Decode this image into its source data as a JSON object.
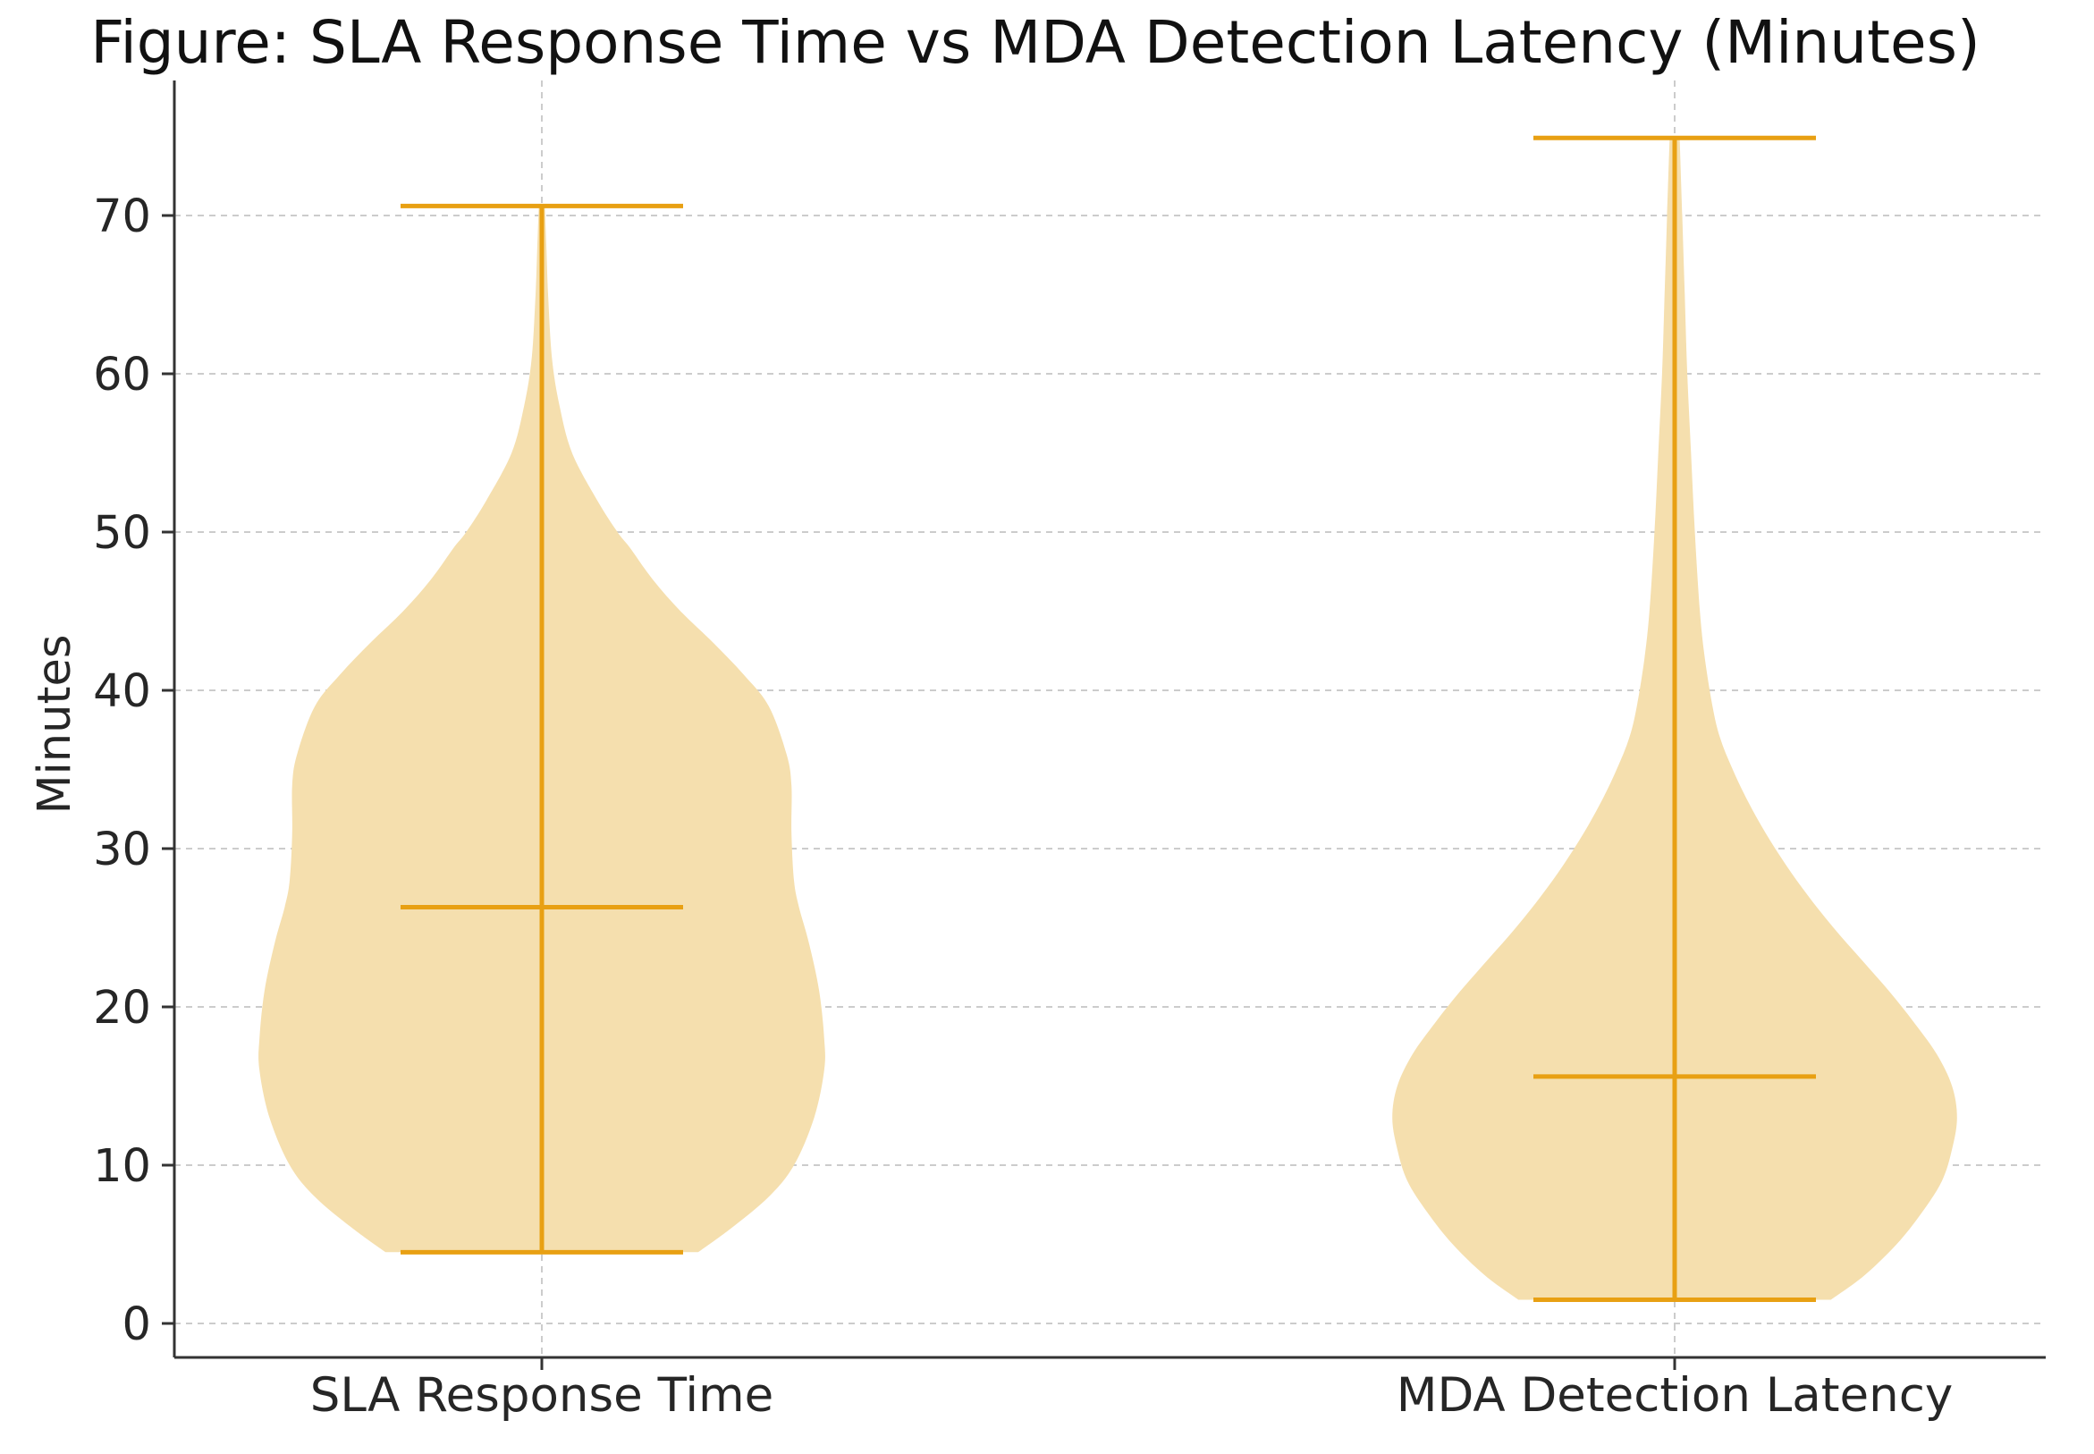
{
  "chart_data": {
    "type": "violin",
    "title": "Figure: SLA Response Time vs MDA Detection Latency (Minutes)",
    "xlabel": "",
    "ylabel": "Minutes",
    "ylim": [
      -2,
      79
    ],
    "yticks": [
      0,
      10,
      20,
      30,
      40,
      50,
      60,
      70
    ],
    "grid": true,
    "colors": {
      "body": "#F5DFAE",
      "lines": "#E8A013",
      "grid": "#CCCCCC",
      "axis": "#333333"
    },
    "categories": [
      "SLA Response Time",
      "MDA Detection Latency"
    ],
    "series": [
      {
        "name": "SLA Response Time",
        "min": 4.5,
        "median": 26.3,
        "max": 70.6,
        "density": [
          [
            4.5,
            0.62
          ],
          [
            6,
            0.75
          ],
          [
            8,
            0.9
          ],
          [
            10,
            1.0
          ],
          [
            13,
            1.08
          ],
          [
            16,
            1.12
          ],
          [
            18,
            1.12
          ],
          [
            21,
            1.1
          ],
          [
            24,
            1.06
          ],
          [
            26.3,
            1.02
          ],
          [
            28,
            1.0
          ],
          [
            31,
            0.99
          ],
          [
            34,
            0.99
          ],
          [
            36,
            0.97
          ],
          [
            39,
            0.9
          ],
          [
            41,
            0.8
          ],
          [
            43,
            0.68
          ],
          [
            45,
            0.55
          ],
          [
            47,
            0.44
          ],
          [
            49,
            0.35
          ],
          [
            50,
            0.3
          ],
          [
            52,
            0.22
          ],
          [
            55,
            0.12
          ],
          [
            58,
            0.07
          ],
          [
            61,
            0.04
          ],
          [
            65,
            0.025
          ],
          [
            68,
            0.018
          ],
          [
            70.6,
            0.012
          ]
        ]
      },
      {
        "name": "MDA Detection Latency",
        "min": 1.5,
        "median": 15.6,
        "max": 74.9,
        "density": [
          [
            1.5,
            0.62
          ],
          [
            3,
            0.75
          ],
          [
            5,
            0.88
          ],
          [
            7,
            0.98
          ],
          [
            9,
            1.06
          ],
          [
            11,
            1.1
          ],
          [
            13,
            1.12
          ],
          [
            15,
            1.1
          ],
          [
            17,
            1.04
          ],
          [
            19,
            0.95
          ],
          [
            21,
            0.85
          ],
          [
            23,
            0.74
          ],
          [
            25,
            0.63
          ],
          [
            27,
            0.53
          ],
          [
            29,
            0.44
          ],
          [
            31,
            0.36
          ],
          [
            33,
            0.29
          ],
          [
            35,
            0.23
          ],
          [
            37,
            0.18
          ],
          [
            39,
            0.15
          ],
          [
            42,
            0.12
          ],
          [
            45,
            0.1
          ],
          [
            50,
            0.08
          ],
          [
            55,
            0.065
          ],
          [
            60,
            0.05
          ],
          [
            65,
            0.04
          ],
          [
            70,
            0.03
          ],
          [
            74.9,
            0.02
          ]
        ]
      }
    ]
  }
}
